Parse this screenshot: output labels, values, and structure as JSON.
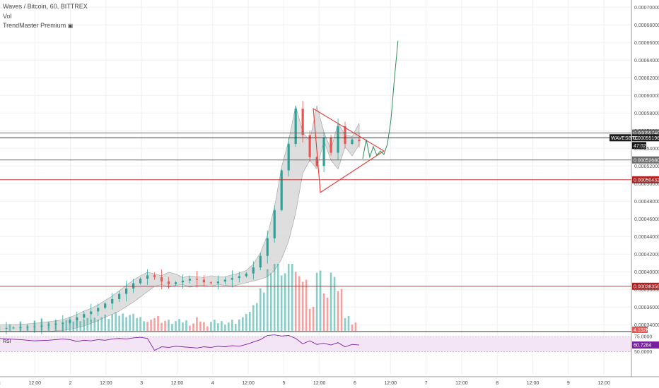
{
  "chart_data": {
    "type": "candlestick",
    "title": "Waves / Bitcoin, 60, BITTREX",
    "indicators": [
      "Vol",
      "TrendMaster Premium"
    ],
    "lock_icon": "lock-icon",
    "x_tick_labels": [
      "c",
      "12:00",
      "2",
      "12:00",
      "3",
      "12:00",
      "4",
      "12:00",
      "5",
      "12:00",
      "6",
      "12:00",
      "7",
      "12:00",
      "8",
      "12:00",
      "9",
      "12:00"
    ],
    "y_tick_labels": [
      "0.00070000",
      "0.00068000",
      "0.00066000",
      "0.00064000",
      "0.00062000",
      "0.00060000",
      "0.00058000",
      "0.00056000",
      "0.00054000",
      "0.00052000",
      "0.00050000",
      "0.00048000",
      "0.00046000",
      "0.00044000",
      "0.00042000",
      "0.00040000",
      "0.00038000",
      "0.00036000",
      "0.00034000"
    ],
    "ylim": [
      0.000333,
      0.000705
    ],
    "price_series": {
      "x_hours": [
        0,
        6,
        10,
        14,
        18,
        20,
        22,
        24,
        26,
        28,
        30,
        32,
        34,
        36,
        38,
        40,
        42,
        44,
        46,
        48,
        50,
        52,
        54,
        56,
        58,
        60,
        62,
        64,
        66,
        68,
        70,
        72,
        74,
        76,
        78,
        80,
        82,
        84,
        86,
        88,
        90,
        92,
        94,
        96,
        98,
        100,
        102
      ],
      "close": [
        0.000336,
        0.000337,
        0.000338,
        0.00034,
        0.000342,
        0.000345,
        0.000348,
        0.000352,
        0.000355,
        0.000359,
        0.000364,
        0.000369,
        0.000375,
        0.000381,
        0.000387,
        0.000392,
        0.000396,
        0.000394,
        0.000389,
        0.000386,
        0.000388,
        0.00039,
        0.000392,
        0.000391,
        0.000388,
        0.000387,
        0.000389,
        0.000391,
        0.000393,
        0.000395,
        0.000398,
        0.000405,
        0.000418,
        0.000438,
        0.00047,
        0.000515,
        0.000545,
        0.000585,
        0.000555,
        0.00053,
        0.00052,
        0.000552,
        0.000535,
        0.000565,
        0.000545,
        0.00055,
        0.000548
      ]
    },
    "projection": {
      "x_hours": [
        103,
        104,
        105,
        106,
        107,
        108,
        109,
        110,
        111,
        112,
        113
      ],
      "y": [
        0.000528,
        0.00055,
        0.00053,
        0.000542,
        0.000532,
        0.000537,
        0.000533,
        0.000545,
        0.000572,
        0.00062,
        0.000662
      ]
    },
    "triangle": {
      "x_hours": [
        89,
        91,
        109
      ],
      "y": [
        0.000585,
        0.00049,
        0.000537
      ]
    },
    "price_lines": [
      {
        "value": 0.0005574,
        "label": "0.00055740",
        "color": "#6b6b6b"
      },
      {
        "value": 0.00055196,
        "label": "0.00055196",
        "color": "#1a1a1a",
        "tag": "WAVESBTC"
      },
      {
        "value": 0.0005268,
        "label": "0.00052680",
        "color": "#6b6b6b"
      },
      {
        "value": 0.00050432,
        "label": "0.00050432",
        "color": "#b71c1c"
      },
      {
        "value": 0.00038356,
        "label": "0.00038356",
        "color": "#b71c1c"
      }
    ],
    "countdown": "47:02",
    "volume_label": "4.152K",
    "rsi": {
      "label": "RSI",
      "levels": [
        "75.0000",
        "50.0000"
      ],
      "value_label": "60.7284",
      "values": [
        72,
        70,
        68,
        69,
        71,
        70,
        67,
        69,
        68,
        70,
        69,
        71,
        72,
        71,
        73,
        74,
        72,
        52,
        58,
        57,
        59,
        58,
        57,
        56,
        58,
        57,
        59,
        58,
        60,
        59,
        62,
        66,
        70,
        77,
        78,
        76,
        77,
        72,
        63,
        68,
        62,
        64,
        61,
        65,
        58,
        62,
        61
      ]
    },
    "colors": {
      "up": "#26a69a",
      "down": "#ef5350",
      "cloud": "#d6d6d6",
      "rsi": "#7b1fa2",
      "rsi_band": "#f3e5f5",
      "triangle": "#e53935",
      "projection": "#2e8b57"
    }
  }
}
